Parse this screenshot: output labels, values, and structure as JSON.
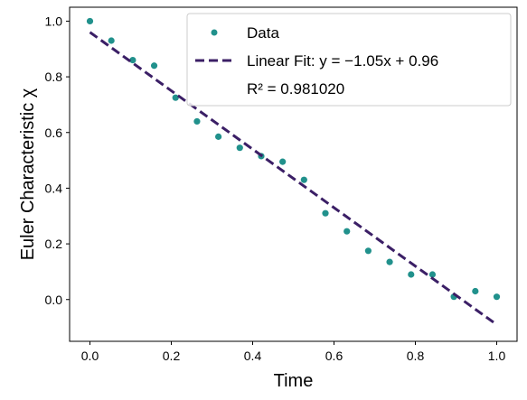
{
  "chart_data": {
    "type": "scatter",
    "title": "",
    "xlabel": "Time",
    "ylabel": "Euler Characteristic χ",
    "xlim": [
      -0.05,
      1.05
    ],
    "ylim": [
      -0.15,
      1.05
    ],
    "xticks": [
      0.0,
      0.2,
      0.4,
      0.6,
      0.8,
      1.0
    ],
    "xtick_labels": [
      "0.0",
      "0.2",
      "0.4",
      "0.6",
      "0.8",
      "1.0"
    ],
    "yticks": [
      0.0,
      0.2,
      0.4,
      0.6,
      0.8,
      1.0
    ],
    "ytick_labels": [
      "0.0",
      "0.2",
      "0.4",
      "0.6",
      "0.8",
      "1.0"
    ],
    "grid": false,
    "legend_position": "top-right",
    "series": [
      {
        "name": "Data",
        "kind": "scatter",
        "color": "#21918c",
        "x": [
          0.0,
          0.0526,
          0.1053,
          0.1579,
          0.2105,
          0.2632,
          0.3158,
          0.3684,
          0.4211,
          0.4737,
          0.5263,
          0.5789,
          0.6316,
          0.6842,
          0.7368,
          0.7895,
          0.8421,
          0.8947,
          0.9474,
          1.0
        ],
        "y": [
          1.0,
          0.93,
          0.86,
          0.84,
          0.725,
          0.64,
          0.585,
          0.545,
          0.515,
          0.495,
          0.43,
          0.31,
          0.245,
          0.175,
          0.135,
          0.09,
          0.09,
          0.01,
          0.03,
          0.01
        ]
      },
      {
        "name": "Linear Fit: y = −1.05x + 0.96",
        "kind": "line",
        "style": "dashed",
        "color": "#3b1f66",
        "slope": -1.05,
        "intercept": 0.96,
        "x_range": [
          0.0,
          1.0
        ]
      }
    ],
    "annotation": "R² = 0.981020"
  }
}
